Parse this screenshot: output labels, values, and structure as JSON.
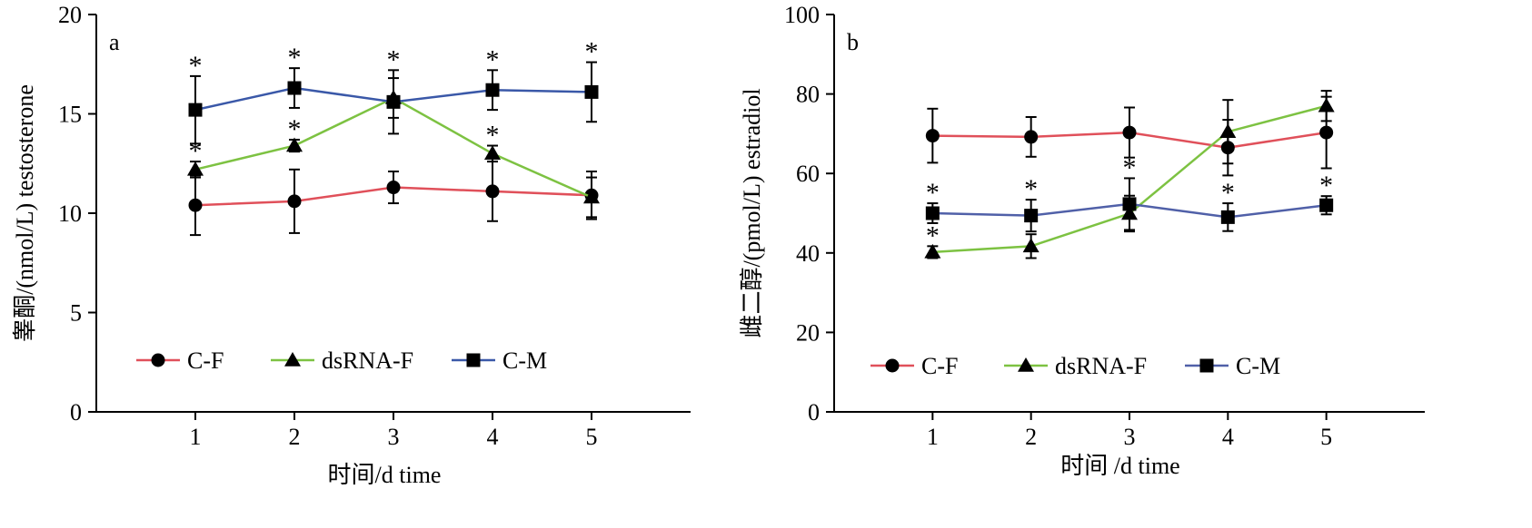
{
  "chart_data": [
    {
      "type": "line",
      "panel": "a",
      "xlabel": "时间/d time",
      "ylabel": "睾酮/(nmol/L) testosterone",
      "x": [
        1,
        2,
        3,
        4,
        5
      ],
      "xlim": [
        0,
        6
      ],
      "ylim": [
        0,
        20
      ],
      "yticks": [
        0,
        5,
        10,
        15,
        20
      ],
      "legend": "bottom",
      "grid": false,
      "series": [
        {
          "name": "C-F",
          "color": "#e0505a",
          "marker": "circle",
          "values": [
            10.4,
            10.6,
            11.3,
            11.1,
            10.9
          ],
          "errors": [
            1.5,
            1.6,
            0.8,
            1.5,
            1.2
          ],
          "stars": [
            false,
            false,
            false,
            false,
            false
          ]
        },
        {
          "name": "dsRNA-F",
          "color": "#7dc242",
          "marker": "triangle",
          "values": [
            12.2,
            13.4,
            15.8,
            13.0,
            10.8
          ],
          "errors": [
            0.4,
            0.3,
            1.0,
            0.4,
            1.0
          ],
          "stars": [
            true,
            true,
            false,
            true,
            false
          ]
        },
        {
          "name": "C-M",
          "color": "#3a58a8",
          "marker": "square",
          "values": [
            15.2,
            16.3,
            15.6,
            16.2,
            16.1
          ],
          "errors": [
            1.7,
            1.0,
            1.6,
            1.0,
            1.5
          ],
          "stars": [
            true,
            true,
            true,
            true,
            true
          ]
        }
      ]
    },
    {
      "type": "line",
      "panel": "b",
      "xlabel": "时间 /d time",
      "ylabel": "雌二醇/(pmol/L) estradiol",
      "x": [
        1,
        2,
        3,
        4,
        5
      ],
      "xlim": [
        0,
        6
      ],
      "ylim": [
        0,
        100
      ],
      "yticks": [
        0,
        20,
        40,
        60,
        80,
        100
      ],
      "legend": "bottom",
      "grid": false,
      "series": [
        {
          "name": "C-F",
          "color": "#e0505a",
          "marker": "circle",
          "values": [
            69.5,
            69.2,
            70.3,
            66.5,
            70.3
          ],
          "errors": [
            6.8,
            5.0,
            6.3,
            7.0,
            9.0
          ],
          "stars": [
            false,
            false,
            false,
            false,
            false
          ]
        },
        {
          "name": "dsRNA-F",
          "color": "#7dc242",
          "marker": "triangle",
          "values": [
            40.2,
            41.7,
            49.9,
            70.5,
            77.0
          ],
          "errors": [
            1.5,
            3.0,
            4.5,
            8.0,
            3.8
          ],
          "stars": [
            true,
            false,
            false,
            false,
            false
          ]
        },
        {
          "name": "C-M",
          "color": "#5060a8",
          "marker": "square",
          "values": [
            50.0,
            49.4,
            52.3,
            49.0,
            52.0
          ],
          "errors": [
            2.5,
            4.0,
            6.5,
            3.5,
            2.3
          ],
          "stars": [
            true,
            true,
            true,
            true,
            true
          ]
        }
      ]
    }
  ]
}
